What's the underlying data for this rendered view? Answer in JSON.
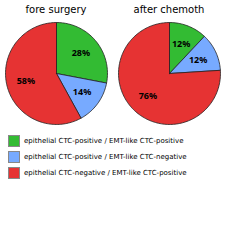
{
  "chart_data": [
    {
      "type": "pie",
      "title": "fore surgery",
      "categories": [
        "epithelial CTC-positive / EMT-like CTC-positive",
        "epithelial CTC-positive / EMT-like CTC-negative",
        "epithelial CTC-negative / EMT-like CTC-positive"
      ],
      "values": [
        28,
        14,
        58
      ],
      "value_labels": [
        "28%",
        "14%",
        "58%"
      ],
      "colors": [
        "#33bb33",
        "#77aaff",
        "#e63333"
      ],
      "data_labels": true,
      "legend": "bottom"
    },
    {
      "type": "pie",
      "title": "after chemoth",
      "categories": [
        "epithelial CTC-positive / EMT-like CTC-positive",
        "epithelial CTC-positive / EMT-like CTC-negative",
        "epithelial CTC-negative / EMT-like CTC-positive"
      ],
      "values": [
        12,
        12,
        76
      ],
      "value_labels": [
        "12%",
        "12%",
        "76%"
      ],
      "colors": [
        "#33bb33",
        "#77aaff",
        "#e63333"
      ],
      "data_labels": true,
      "legend": "bottom"
    }
  ]
}
